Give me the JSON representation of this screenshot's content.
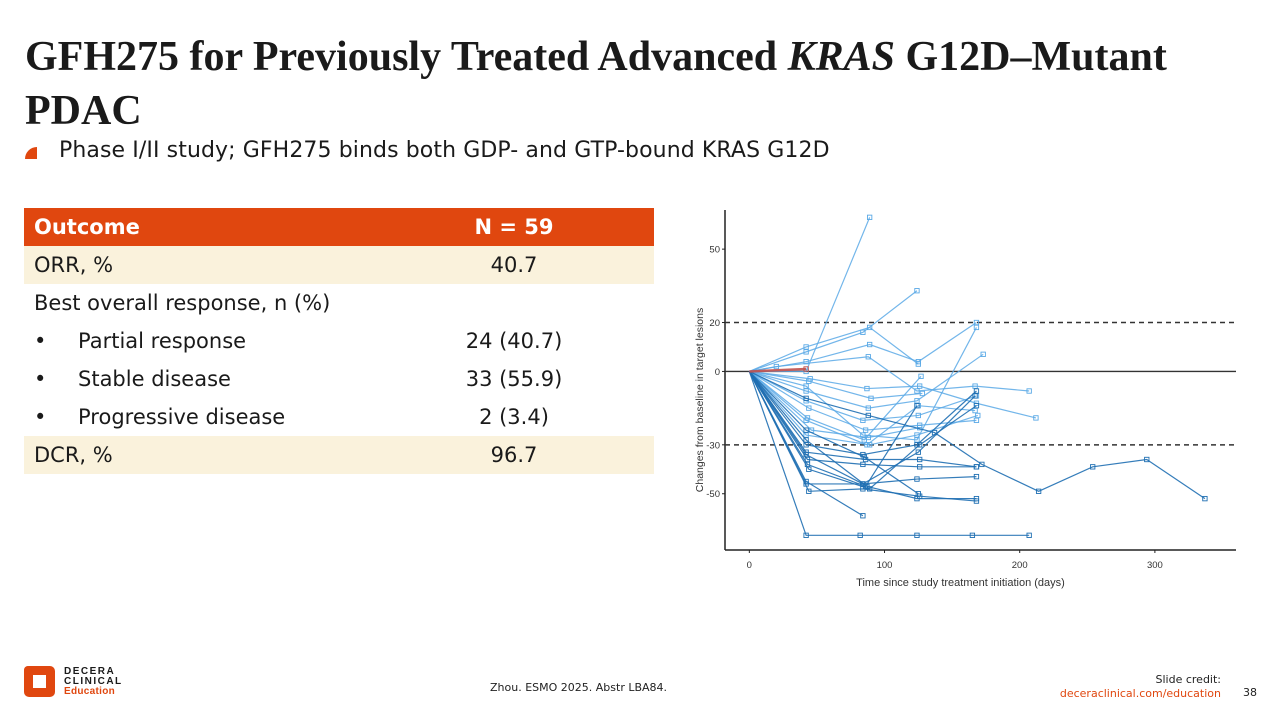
{
  "slide": {
    "title_part1": "GFH275 for Previously Treated Advanced ",
    "title_italic": "KRAS",
    "title_part2": " G12D–Mutant PDAC",
    "bullet": "Phase I/II study; GFH275 binds both GDP- and GTP-bound KRAS G12D",
    "accent_color": "#e0470f"
  },
  "table": {
    "header": {
      "label": "Outcome",
      "value": "N = 59"
    },
    "rows": [
      {
        "label": "ORR, %",
        "value": "40.7",
        "shaded": true,
        "bullet": false
      },
      {
        "label": "Best overall response, n (%)",
        "value": "",
        "shaded": false,
        "bullet": false
      },
      {
        "label": "Partial response",
        "value": "24 (40.7)",
        "shaded": false,
        "bullet": true
      },
      {
        "label": "Stable disease",
        "value": "33 (55.9)",
        "shaded": false,
        "bullet": true
      },
      {
        "label": "Progressive disease",
        "value": "2 (3.4)",
        "shaded": false,
        "bullet": true
      },
      {
        "label": "DCR, %",
        "value": "96.7",
        "shaded": true,
        "bullet": false
      }
    ],
    "bullet_char": "•"
  },
  "chart_data": {
    "type": "line",
    "title": "",
    "xlabel": "Time since study treatment initiation (days)",
    "ylabel": "Changes from baseline in target lesions",
    "xlim": [
      -18,
      360
    ],
    "ylim": [
      -73,
      66
    ],
    "xticks": [
      0,
      100,
      200,
      300
    ],
    "yticks": [
      50,
      20,
      0,
      -30,
      -50
    ],
    "reference_lines": [
      20,
      0,
      -30
    ],
    "colors": {
      "light": "#5aa9e6",
      "dark": "#1f6fb2",
      "red": "#c0504d",
      "ref": "#333333"
    },
    "series": [
      {
        "name": "pt1",
        "shade": "light",
        "points": [
          [
            0,
            0
          ],
          [
            42,
            0
          ],
          [
            89,
            63
          ]
        ]
      },
      {
        "name": "pt2",
        "shade": "light",
        "points": [
          [
            0,
            0
          ],
          [
            42,
            8
          ],
          [
            84,
            16
          ],
          [
            124,
            33
          ]
        ]
      },
      {
        "name": "pt3",
        "shade": "light",
        "points": [
          [
            0,
            0
          ],
          [
            42,
            10
          ],
          [
            89,
            18
          ],
          [
            125,
            3
          ]
        ]
      },
      {
        "name": "pt4",
        "shade": "light",
        "points": [
          [
            0,
            0
          ],
          [
            42,
            4
          ],
          [
            89,
            11
          ],
          [
            125,
            4
          ],
          [
            168,
            20
          ]
        ]
      },
      {
        "name": "pt5",
        "shade": "light",
        "points": [
          [
            0,
            0
          ],
          [
            20,
            2
          ],
          [
            88,
            6
          ],
          [
            124,
            -8
          ],
          [
            167,
            -6
          ],
          [
            207,
            -8
          ]
        ]
      },
      {
        "name": "pt6",
        "shade": "light",
        "points": [
          [
            0,
            0
          ],
          [
            45,
            -3
          ],
          [
            87,
            -7
          ],
          [
            126,
            -6
          ],
          [
            168,
            -13
          ],
          [
            212,
            -19
          ]
        ]
      },
      {
        "name": "pt7",
        "shade": "light",
        "points": [
          [
            0,
            0
          ],
          [
            42,
            -8
          ],
          [
            88,
            -15
          ],
          [
            124,
            -12
          ],
          [
            173,
            7
          ]
        ]
      },
      {
        "name": "pt8",
        "shade": "light",
        "points": [
          [
            0,
            0
          ],
          [
            42,
            -12
          ],
          [
            84,
            -20
          ],
          [
            125,
            -18
          ],
          [
            168,
            -10
          ]
        ]
      },
      {
        "name": "pt9",
        "shade": "light",
        "points": [
          [
            0,
            0
          ],
          [
            44,
            -15
          ],
          [
            86,
            -24
          ],
          [
            126,
            -22
          ],
          [
            168,
            -20
          ]
        ]
      },
      {
        "name": "pt10",
        "shade": "light",
        "points": [
          [
            0,
            0
          ],
          [
            42,
            -6
          ],
          [
            84,
            -26
          ],
          [
            124,
            -28
          ],
          [
            168,
            18
          ]
        ]
      },
      {
        "name": "pt11",
        "shade": "light",
        "points": [
          [
            0,
            0
          ],
          [
            43,
            -19
          ],
          [
            85,
            -28
          ],
          [
            127,
            -2
          ]
        ]
      },
      {
        "name": "pt12",
        "shade": "light",
        "points": [
          [
            0,
            0
          ],
          [
            42,
            -20
          ],
          [
            87,
            -30
          ],
          [
            125,
            -14
          ],
          [
            167,
            -16
          ]
        ]
      },
      {
        "name": "pt13",
        "shade": "light",
        "points": [
          [
            0,
            0
          ],
          [
            46,
            -24
          ],
          [
            88,
            -27
          ],
          [
            126,
            -23
          ]
        ]
      },
      {
        "name": "pt14",
        "shade": "light",
        "points": [
          [
            0,
            0
          ],
          [
            44,
            -4
          ],
          [
            90,
            -11
          ],
          [
            128,
            -9
          ]
        ]
      },
      {
        "name": "pt15",
        "shade": "light",
        "points": [
          [
            0,
            0
          ],
          [
            42,
            -26
          ],
          [
            89,
            -30
          ],
          [
            124,
            -26
          ],
          [
            169,
            -18
          ]
        ]
      },
      {
        "name": "pt16",
        "shade": "dark",
        "points": [
          [
            0,
            0
          ],
          [
            42,
            -11
          ],
          [
            88,
            -18
          ],
          [
            137,
            -25
          ],
          [
            172,
            -38
          ],
          [
            214,
            -49
          ],
          [
            254,
            -39
          ],
          [
            294,
            -36
          ],
          [
            337,
            -52
          ]
        ]
      },
      {
        "name": "pt17",
        "shade": "dark",
        "points": [
          [
            0,
            0
          ],
          [
            42,
            -30
          ],
          [
            84,
            -34
          ],
          [
            124,
            -30
          ],
          [
            168,
            -8
          ]
        ]
      },
      {
        "name": "pt18",
        "shade": "dark",
        "points": [
          [
            0,
            0
          ],
          [
            42,
            -33
          ],
          [
            86,
            -36
          ],
          [
            126,
            -36
          ],
          [
            168,
            -39
          ]
        ]
      },
      {
        "name": "pt19",
        "shade": "dark",
        "points": [
          [
            0,
            0
          ],
          [
            43,
            -36
          ],
          [
            84,
            -38
          ],
          [
            126,
            -39
          ],
          [
            168,
            -39
          ]
        ]
      },
      {
        "name": "pt20",
        "shade": "dark",
        "points": [
          [
            0,
            0
          ],
          [
            42,
            -46
          ],
          [
            84,
            -46
          ],
          [
            124,
            -44
          ],
          [
            168,
            -43
          ]
        ]
      },
      {
        "name": "pt21",
        "shade": "dark",
        "points": [
          [
            0,
            0
          ],
          [
            44,
            -49
          ],
          [
            84,
            -48
          ],
          [
            126,
            -51
          ],
          [
            168,
            -53
          ]
        ]
      },
      {
        "name": "pt22",
        "shade": "dark",
        "points": [
          [
            0,
            0
          ],
          [
            42,
            -45
          ],
          [
            84,
            -59
          ]
        ]
      },
      {
        "name": "pt23",
        "shade": "dark",
        "points": [
          [
            0,
            0
          ],
          [
            42,
            -67
          ],
          [
            82,
            -67
          ],
          [
            124,
            -67
          ],
          [
            165,
            -67
          ],
          [
            207,
            -67
          ]
        ]
      },
      {
        "name": "pt24",
        "shade": "dark",
        "points": [
          [
            0,
            0
          ],
          [
            42,
            -28
          ],
          [
            87,
            -47
          ],
          [
            124,
            -52
          ],
          [
            168,
            -52
          ]
        ]
      },
      {
        "name": "pt25",
        "shade": "dark",
        "points": [
          [
            0,
            0
          ],
          [
            43,
            -38
          ],
          [
            86,
            -47
          ],
          [
            124,
            -14
          ]
        ]
      },
      {
        "name": "pt26",
        "shade": "dark",
        "points": [
          [
            0,
            0
          ],
          [
            42,
            -34
          ],
          [
            84,
            -46
          ],
          [
            125,
            -33
          ],
          [
            167,
            -10
          ]
        ]
      },
      {
        "name": "pt27",
        "shade": "dark",
        "points": [
          [
            0,
            0
          ],
          [
            44,
            -40
          ],
          [
            89,
            -48
          ],
          [
            126,
            -30
          ],
          [
            168,
            -14
          ]
        ]
      },
      {
        "name": "pt28",
        "shade": "dark",
        "points": [
          [
            0,
            0
          ],
          [
            42,
            -24
          ],
          [
            85,
            -35
          ],
          [
            125,
            -50
          ]
        ]
      },
      {
        "name": "pt29",
        "shade": "red",
        "points": [
          [
            0,
            0
          ],
          [
            42,
            1
          ]
        ]
      }
    ]
  },
  "footer": {
    "logo_line1": "DECERA",
    "logo_line2": "CLINICAL",
    "logo_line3": "Education",
    "citation": "Zhou. ESMO 2025. Abstr LBA84.",
    "credit_label": "Slide credit:",
    "credit_link": "deceraclinical.com/education",
    "page_number": "38"
  }
}
